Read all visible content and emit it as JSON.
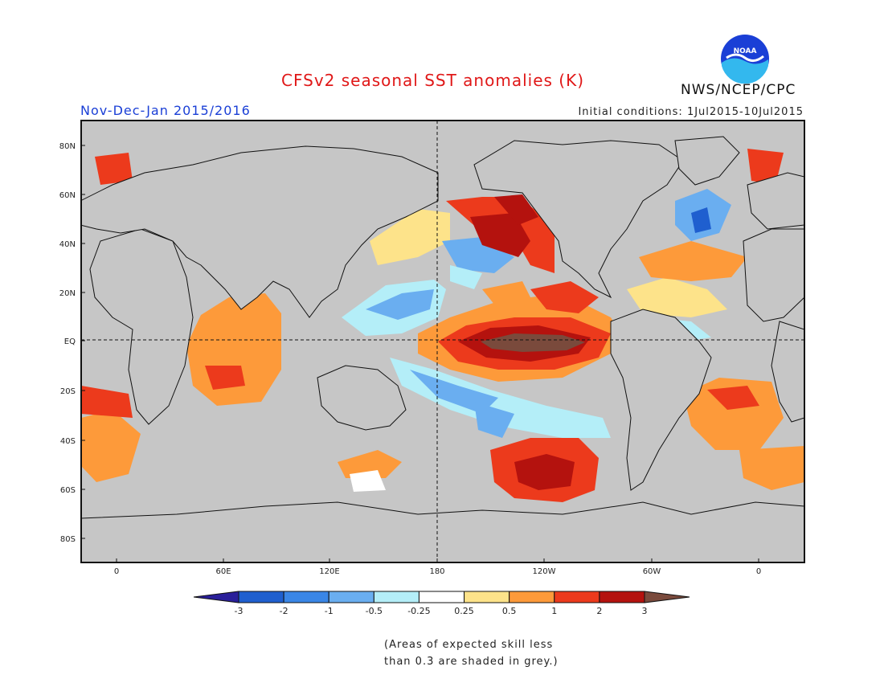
{
  "header": {
    "title": "CFSv2 seasonal SST anomalies (K)",
    "period": "Nov-Dec-Jan 2015/2016",
    "initial_conditions": "Initial conditions: 1Jul2015-10Jul2015",
    "agency": "NWS/NCEP/CPC",
    "logo_text": "NOAA"
  },
  "map": {
    "lat_labels": [
      "80N",
      "60N",
      "40N",
      "20N",
      "EQ",
      "20S",
      "40S",
      "60S",
      "80S"
    ],
    "lon_labels": [
      "0",
      "60E",
      "120E",
      "180",
      "120W",
      "60W",
      "0"
    ]
  },
  "colorbar": {
    "tick_labels": [
      "-3",
      "-2",
      "-1",
      "-0.5",
      "-0.25",
      "0.25",
      "0.5",
      "1",
      "2",
      "3"
    ],
    "colors": [
      "#2a1f9a",
      "#1f5fcf",
      "#3a86e6",
      "#6aaef0",
      "#b4eef8",
      "#ffffff",
      "#fde38a",
      "#fd9a3a",
      "#ec3a1c",
      "#b4120e",
      "#7a4a3c"
    ]
  },
  "note": {
    "line1": "(Areas of expected skill less",
    "line2": "than 0.3 are shaded in grey.)"
  }
}
